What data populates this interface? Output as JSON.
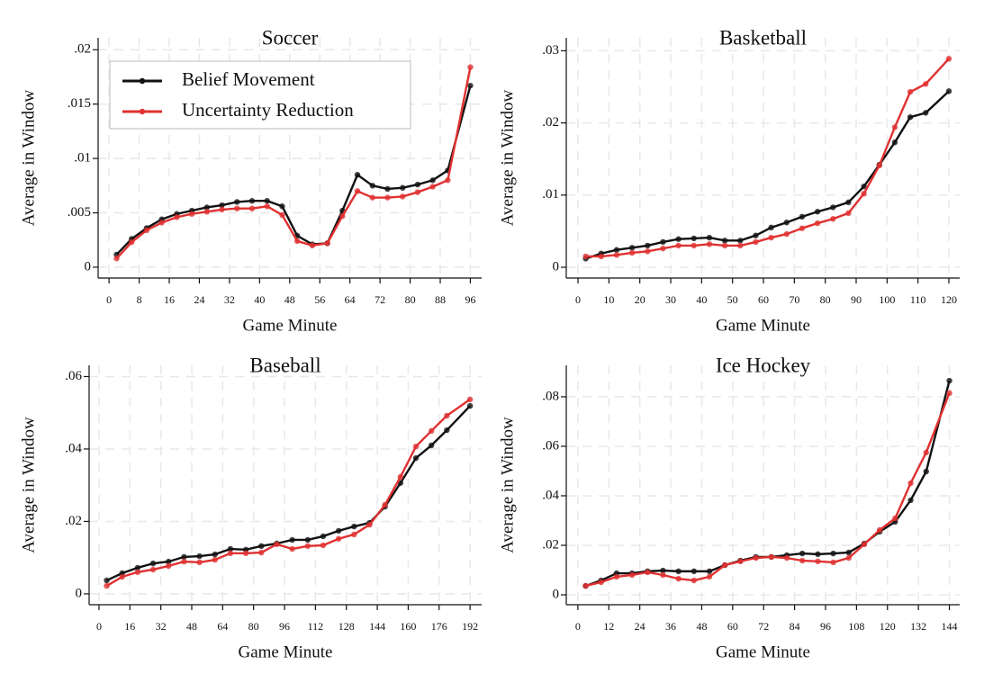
{
  "chart_data": [
    {
      "type": "line",
      "title": "Soccer",
      "xlabel": "Game Minute",
      "ylabel": "Average in Window",
      "x": [
        2,
        6,
        10,
        14,
        18,
        22,
        26,
        30,
        34,
        38,
        42,
        46,
        50,
        54,
        58,
        62,
        66,
        70,
        74,
        78,
        82,
        86,
        90,
        96
      ],
      "series": [
        {
          "name": "Belief Movement",
          "color": "#111111",
          "values": [
            0.00116,
            0.0026,
            0.0036,
            0.0044,
            0.0049,
            0.0052,
            0.0055,
            0.0057,
            0.006,
            0.0061,
            0.0061,
            0.0056,
            0.0029,
            0.0021,
            0.0022,
            0.0052,
            0.0085,
            0.0075,
            0.0072,
            0.0073,
            0.0076,
            0.008,
            0.0089,
            0.0167
          ]
        },
        {
          "name": "Uncertainty Reduction",
          "color": "#e03131",
          "values": [
            0.0008,
            0.0023,
            0.0034,
            0.0041,
            0.0046,
            0.0049,
            0.0051,
            0.0053,
            0.0054,
            0.0054,
            0.0056,
            0.0048,
            0.0024,
            0.002,
            0.0022,
            0.0047,
            0.007,
            0.0064,
            0.0064,
            0.0065,
            0.0069,
            0.0074,
            0.008,
            0.0184
          ]
        }
      ],
      "xlim": [
        -2.9,
        99
      ],
      "ylim": [
        -0.001,
        0.0211
      ],
      "xticks": [
        0,
        8,
        16,
        24,
        32,
        40,
        48,
        56,
        64,
        72,
        80,
        88,
        96
      ],
      "yticks": [
        0,
        {
          "value": 0.005,
          "label": ".005"
        },
        {
          "value": 0.01,
          "label": ".01"
        },
        {
          "value": 0.015,
          "label": ".015"
        },
        {
          "value": 0.02,
          "label": ".02"
        }
      ],
      "grid": true,
      "legend": "upper left"
    },
    {
      "type": "line",
      "title": "Basketball",
      "xlabel": "Game Minute",
      "ylabel": "Average in Window",
      "x": [
        2.5,
        7.5,
        12.5,
        17.5,
        22.5,
        27.5,
        32.5,
        37.5,
        42.5,
        47.5,
        52.5,
        57.5,
        62.5,
        67.5,
        72.5,
        77.5,
        82.5,
        87.5,
        92.5,
        97.5,
        102.5,
        107.5,
        112.5,
        120
      ],
      "series": [
        {
          "color": "#111111",
          "values": [
            0.0012,
            0.0019,
            0.0024,
            0.0027,
            0.003,
            0.0035,
            0.0039,
            0.004,
            0.0041,
            0.0037,
            0.0037,
            0.0044,
            0.0055,
            0.0062,
            0.007,
            0.0077,
            0.0083,
            0.009,
            0.0112,
            0.0142,
            0.0173,
            0.0208,
            0.0214,
            0.0244
          ]
        },
        {
          "color": "#e03131",
          "values": [
            0.0015,
            0.0015,
            0.0017,
            0.002,
            0.0022,
            0.0026,
            0.003,
            0.003,
            0.0032,
            0.003,
            0.003,
            0.0035,
            0.0041,
            0.0046,
            0.0054,
            0.0061,
            0.0067,
            0.0075,
            0.0102,
            0.0141,
            0.0194,
            0.0243,
            0.0254,
            0.0289
          ]
        }
      ],
      "xlim": [
        -3.8,
        123.5
      ],
      "ylim": [
        -0.0015,
        0.0318
      ],
      "xticks": [
        0,
        10,
        20,
        30,
        40,
        50,
        60,
        70,
        80,
        90,
        100,
        110,
        120
      ],
      "yticks": [
        0,
        {
          "value": 0.01,
          "label": ".01"
        },
        {
          "value": 0.02,
          "label": ".02"
        },
        {
          "value": 0.03,
          "label": ".03"
        }
      ],
      "grid": true
    },
    {
      "type": "line",
      "title": "Baseball",
      "xlabel": "Game Minute",
      "ylabel": "Average in Window",
      "x": [
        4,
        12,
        20,
        28,
        36,
        44,
        52,
        60,
        68,
        76,
        84,
        92,
        100,
        108,
        116,
        124,
        132,
        140,
        148,
        156,
        164,
        172,
        180,
        192
      ],
      "series": [
        {
          "color": "#111111",
          "values": [
            0.0037,
            0.0057,
            0.0072,
            0.0084,
            0.0089,
            0.0102,
            0.0104,
            0.0109,
            0.0124,
            0.0122,
            0.0132,
            0.0139,
            0.0149,
            0.0149,
            0.0159,
            0.0174,
            0.0186,
            0.0196,
            0.0241,
            0.0306,
            0.0375,
            0.041,
            0.0452,
            0.0519
          ]
        },
        {
          "color": "#e03131",
          "values": [
            0.0022,
            0.0047,
            0.006,
            0.0067,
            0.0077,
            0.0089,
            0.0087,
            0.0094,
            0.0112,
            0.0112,
            0.0114,
            0.0137,
            0.0124,
            0.0132,
            0.0134,
            0.0152,
            0.0164,
            0.0191,
            0.0246,
            0.0323,
            0.0407,
            0.045,
            0.0492,
            0.0537
          ]
        }
      ],
      "xlim": [
        -5.1,
        198
      ],
      "ylim": [
        -0.003,
        0.0631
      ],
      "xticks": [
        0,
        16,
        32,
        48,
        64,
        80,
        96,
        112,
        128,
        144,
        160,
        176,
        192
      ],
      "yticks": [
        0,
        {
          "value": 0.02,
          "label": ".02"
        },
        {
          "value": 0.04,
          "label": ".04"
        },
        {
          "value": 0.06,
          "label": ".06"
        }
      ],
      "grid": true
    },
    {
      "type": "line",
      "title": "Ice Hockey",
      "xlabel": "Game Minute",
      "ylabel": "Average in Window",
      "x": [
        3,
        9,
        15,
        21,
        27,
        33,
        39,
        45,
        51,
        57,
        63,
        69,
        75,
        81,
        87,
        93,
        99,
        105,
        111,
        117,
        123,
        129,
        135,
        144
      ],
      "series": [
        {
          "color": "#111111",
          "values": [
            0.0036,
            0.0058,
            0.0087,
            0.0087,
            0.0095,
            0.0098,
            0.0095,
            0.0095,
            0.0095,
            0.012,
            0.0138,
            0.0153,
            0.0153,
            0.016,
            0.0167,
            0.0164,
            0.0167,
            0.0171,
            0.0207,
            0.0255,
            0.0295,
            0.0382,
            0.0498,
            0.0865
          ]
        },
        {
          "color": "#e03131",
          "values": [
            0.0036,
            0.0051,
            0.0073,
            0.008,
            0.0091,
            0.008,
            0.0065,
            0.0058,
            0.0073,
            0.012,
            0.0135,
            0.0149,
            0.0153,
            0.0149,
            0.0138,
            0.0135,
            0.0131,
            0.0149,
            0.0204,
            0.0262,
            0.0309,
            0.0451,
            0.0575,
            0.0815
          ]
        }
      ],
      "xlim": [
        -4.5,
        148
      ],
      "ylim": [
        -0.004,
        0.0927
      ],
      "xticks": [
        0,
        12,
        24,
        36,
        48,
        60,
        72,
        84,
        96,
        108,
        120,
        132,
        144
      ],
      "yticks": [
        0,
        {
          "value": 0.02,
          "label": ".02"
        },
        {
          "value": 0.04,
          "label": ".04"
        },
        {
          "value": 0.06,
          "label": ".06"
        },
        {
          "value": 0.08,
          "label": ".08"
        }
      ],
      "grid": true
    }
  ]
}
